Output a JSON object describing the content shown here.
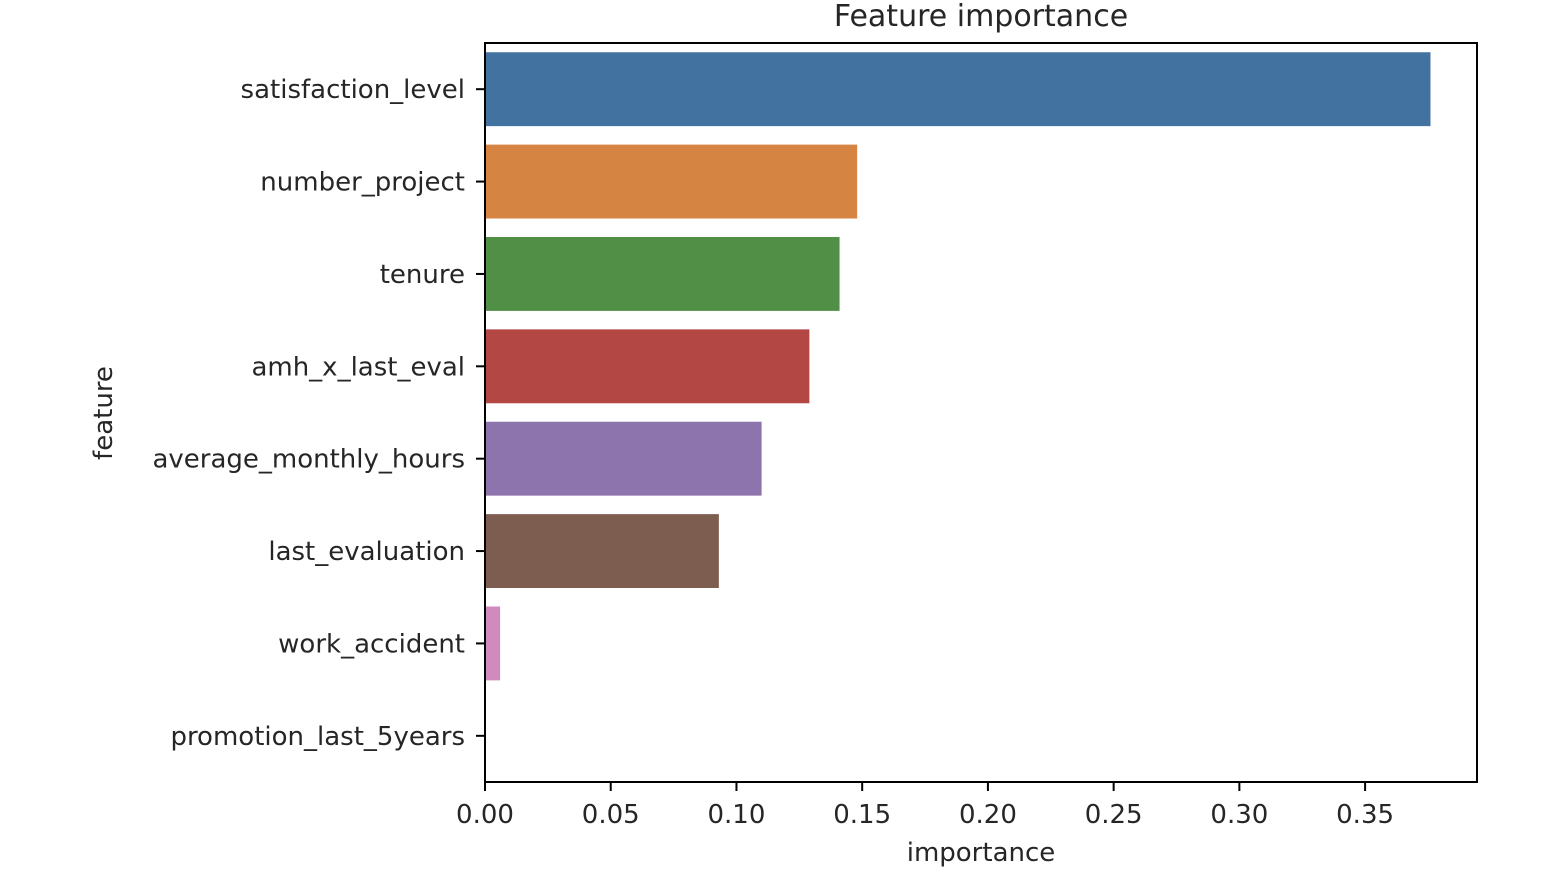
{
  "chart_data": {
    "type": "bar",
    "orientation": "horizontal",
    "title": "Feature importance",
    "xlabel": "importance",
    "ylabel": "feature",
    "xlim": [
      0,
      0.3945
    ],
    "xticks": [
      0.0,
      0.05,
      0.1,
      0.15,
      0.2,
      0.25,
      0.3,
      0.35
    ],
    "xtick_labels": [
      "0.00",
      "0.05",
      "0.10",
      "0.15",
      "0.20",
      "0.25",
      "0.30",
      "0.35"
    ],
    "grid": false,
    "legend": "none",
    "categories": [
      "satisfaction_level",
      "number_project",
      "tenure",
      "amh_x_last_eval",
      "average_monthly_hours",
      "last_evaluation",
      "work_accident",
      "promotion_last_5years"
    ],
    "values": [
      0.376,
      0.148,
      0.141,
      0.129,
      0.11,
      0.093,
      0.006,
      0.0
    ],
    "colors": [
      "#4272a0",
      "#d68441",
      "#518f46",
      "#b24744",
      "#8d74ad",
      "#7e5d51",
      "#d18abe",
      "#808080"
    ]
  }
}
